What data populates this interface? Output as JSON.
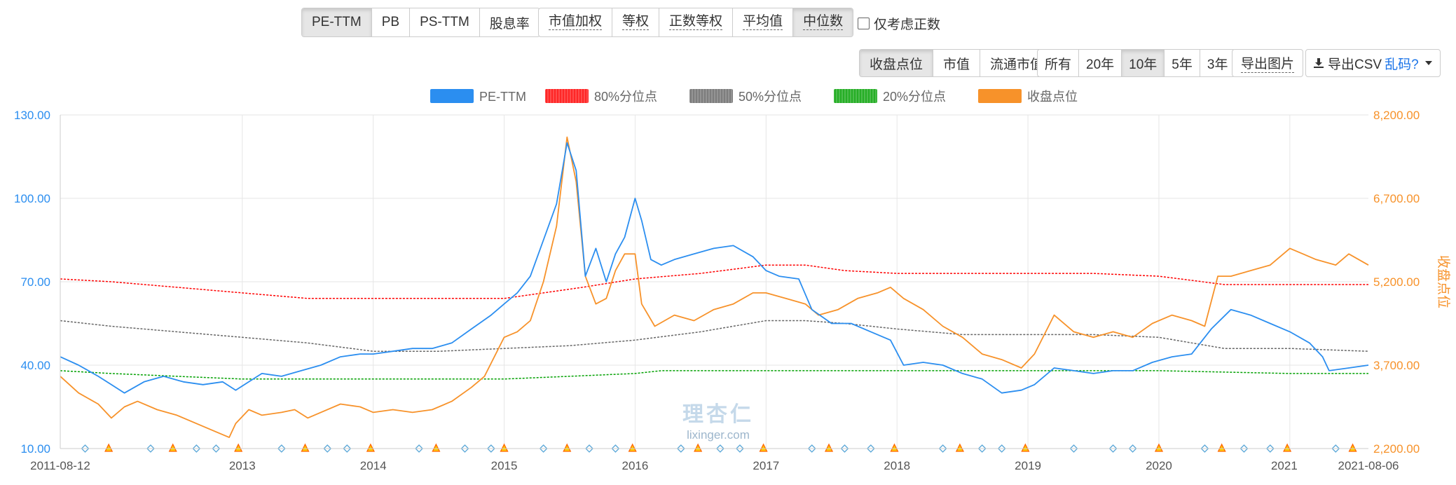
{
  "metric_tabs": [
    {
      "label": "PE-TTM",
      "active": true
    },
    {
      "label": "PB",
      "active": false
    },
    {
      "label": "PS-TTM",
      "active": false
    },
    {
      "label": "股息率",
      "active": false
    }
  ],
  "weight_tabs": [
    {
      "label": "市值加权",
      "active": false
    },
    {
      "label": "等权",
      "active": false
    },
    {
      "label": "正数等权",
      "active": false
    },
    {
      "label": "平均值",
      "active": false
    },
    {
      "label": "中位数",
      "active": true
    }
  ],
  "positive_only_label": "仅考虑正数",
  "value_tabs": [
    {
      "label": "收盘点位",
      "active": true
    },
    {
      "label": "市值",
      "active": false
    },
    {
      "label": "流通市值",
      "active": false
    }
  ],
  "range_tabs": [
    {
      "label": "所有",
      "active": false
    },
    {
      "label": "20年",
      "active": false
    },
    {
      "label": "10年",
      "active": true
    },
    {
      "label": "5年",
      "active": false
    },
    {
      "label": "3年",
      "active": false
    }
  ],
  "export_image_label": "导出图片",
  "export_csv_label": "导出CSV",
  "garbled_link": "乱码?",
  "watermark": {
    "cn": "理杏仁",
    "en": "lixinger.com"
  },
  "colors": {
    "pe": "#2b8ef0",
    "p80": "#ff0000",
    "p50": "#666666",
    "p20": "#00a000",
    "close": "#f7922a",
    "marker": "#5aa7d8",
    "marker2": "#ff6600"
  },
  "chart_data": {
    "type": "line",
    "legend": [
      "PE-TTM",
      "80%分位点",
      "50%分位点",
      "20%分位点",
      "收盘点位"
    ],
    "x_start": "2011-08-12",
    "x_end": "2021-08-06",
    "x_ticks": [
      "2011-08-12",
      "2013",
      "2014",
      "2015",
      "2016",
      "2017",
      "2018",
      "2019",
      "2020",
      "2021",
      "2021-08-06"
    ],
    "y_left": {
      "min": 10,
      "max": 130,
      "ticks": [
        "10.00",
        "40.00",
        "70.00",
        "100.00",
        "130.00"
      ]
    },
    "y_right": {
      "min": 2200,
      "max": 8200,
      "ticks": [
        "2,200.00",
        "3,700.00",
        "5,200.00",
        "6,700.00",
        "8,200.00"
      ],
      "label": "收盘点位"
    },
    "series": [
      {
        "name": "PE-TTM",
        "axis": "left",
        "points": [
          [
            2011.61,
            43
          ],
          [
            2011.75,
            40
          ],
          [
            2011.9,
            36
          ],
          [
            2012.0,
            33
          ],
          [
            2012.1,
            30
          ],
          [
            2012.25,
            34
          ],
          [
            2012.4,
            36
          ],
          [
            2012.55,
            34
          ],
          [
            2012.7,
            33
          ],
          [
            2012.85,
            34
          ],
          [
            2012.95,
            31
          ],
          [
            2013.05,
            34
          ],
          [
            2013.15,
            37
          ],
          [
            2013.3,
            36
          ],
          [
            2013.45,
            38
          ],
          [
            2013.6,
            40
          ],
          [
            2013.75,
            43
          ],
          [
            2013.9,
            44
          ],
          [
            2014.0,
            44
          ],
          [
            2014.15,
            45
          ],
          [
            2014.3,
            46
          ],
          [
            2014.45,
            46
          ],
          [
            2014.6,
            48
          ],
          [
            2014.75,
            53
          ],
          [
            2014.9,
            58
          ],
          [
            2015.0,
            62
          ],
          [
            2015.1,
            66
          ],
          [
            2015.2,
            72
          ],
          [
            2015.3,
            85
          ],
          [
            2015.4,
            98
          ],
          [
            2015.48,
            120
          ],
          [
            2015.55,
            110
          ],
          [
            2015.62,
            72
          ],
          [
            2015.7,
            82
          ],
          [
            2015.78,
            70
          ],
          [
            2015.85,
            80
          ],
          [
            2015.92,
            86
          ],
          [
            2016.0,
            100
          ],
          [
            2016.05,
            92
          ],
          [
            2016.12,
            78
          ],
          [
            2016.2,
            76
          ],
          [
            2016.3,
            78
          ],
          [
            2016.45,
            80
          ],
          [
            2016.6,
            82
          ],
          [
            2016.75,
            83
          ],
          [
            2016.9,
            79
          ],
          [
            2017.0,
            74
          ],
          [
            2017.1,
            72
          ],
          [
            2017.25,
            71
          ],
          [
            2017.35,
            60
          ],
          [
            2017.5,
            55
          ],
          [
            2017.65,
            55
          ],
          [
            2017.8,
            52
          ],
          [
            2017.95,
            49
          ],
          [
            2018.05,
            40
          ],
          [
            2018.2,
            41
          ],
          [
            2018.35,
            40
          ],
          [
            2018.5,
            37
          ],
          [
            2018.65,
            35
          ],
          [
            2018.8,
            30
          ],
          [
            2018.95,
            31
          ],
          [
            2019.05,
            33
          ],
          [
            2019.2,
            39
          ],
          [
            2019.35,
            38
          ],
          [
            2019.5,
            37
          ],
          [
            2019.65,
            38
          ],
          [
            2019.8,
            38
          ],
          [
            2019.95,
            41
          ],
          [
            2020.1,
            43
          ],
          [
            2020.25,
            44
          ],
          [
            2020.4,
            53
          ],
          [
            2020.55,
            60
          ],
          [
            2020.7,
            58
          ],
          [
            2020.85,
            55
          ],
          [
            2021.0,
            52
          ],
          [
            2021.15,
            48
          ],
          [
            2021.25,
            43
          ],
          [
            2021.3,
            38
          ],
          [
            2021.45,
            39
          ],
          [
            2021.6,
            40
          ]
        ]
      },
      {
        "name": "80%分位点",
        "axis": "left",
        "points": [
          [
            2011.61,
            71
          ],
          [
            2012.0,
            70
          ],
          [
            2012.5,
            68
          ],
          [
            2013.0,
            66
          ],
          [
            2013.5,
            64
          ],
          [
            2014.0,
            64
          ],
          [
            2014.5,
            64
          ],
          [
            2015.0,
            64
          ],
          [
            2015.3,
            66
          ],
          [
            2015.6,
            68
          ],
          [
            2016.0,
            71
          ],
          [
            2016.5,
            73
          ],
          [
            2017.0,
            76
          ],
          [
            2017.3,
            76
          ],
          [
            2017.6,
            74
          ],
          [
            2018.0,
            73
          ],
          [
            2018.5,
            73
          ],
          [
            2019.0,
            73
          ],
          [
            2019.5,
            73
          ],
          [
            2020.0,
            72
          ],
          [
            2020.5,
            69
          ],
          [
            2021.0,
            69
          ],
          [
            2021.6,
            69
          ]
        ]
      },
      {
        "name": "50%分位点",
        "axis": "left",
        "points": [
          [
            2011.61,
            56
          ],
          [
            2012.0,
            54
          ],
          [
            2012.5,
            52
          ],
          [
            2013.0,
            50
          ],
          [
            2013.5,
            48
          ],
          [
            2014.0,
            45
          ],
          [
            2014.5,
            45
          ],
          [
            2015.0,
            46
          ],
          [
            2015.5,
            47
          ],
          [
            2016.0,
            49
          ],
          [
            2016.5,
            52
          ],
          [
            2017.0,
            56
          ],
          [
            2017.3,
            56
          ],
          [
            2017.6,
            55
          ],
          [
            2018.0,
            53
          ],
          [
            2018.5,
            51
          ],
          [
            2019.0,
            51
          ],
          [
            2019.5,
            51
          ],
          [
            2020.0,
            50
          ],
          [
            2020.5,
            46
          ],
          [
            2021.0,
            46
          ],
          [
            2021.6,
            45
          ]
        ]
      },
      {
        "name": "20%分位点",
        "axis": "left",
        "points": [
          [
            2011.61,
            38
          ],
          [
            2012.0,
            37
          ],
          [
            2012.5,
            36
          ],
          [
            2013.0,
            35
          ],
          [
            2013.5,
            35
          ],
          [
            2014.0,
            35
          ],
          [
            2014.5,
            35
          ],
          [
            2015.0,
            35
          ],
          [
            2015.5,
            36
          ],
          [
            2016.0,
            37
          ],
          [
            2016.2,
            38
          ],
          [
            2017.0,
            38
          ],
          [
            2018.0,
            38
          ],
          [
            2019.0,
            38
          ],
          [
            2020.0,
            38
          ],
          [
            2021.0,
            37
          ],
          [
            2021.6,
            37
          ]
        ]
      },
      {
        "name": "收盘点位",
        "axis": "right",
        "points": [
          [
            2011.61,
            3500
          ],
          [
            2011.75,
            3200
          ],
          [
            2011.9,
            3000
          ],
          [
            2012.0,
            2750
          ],
          [
            2012.1,
            2950
          ],
          [
            2012.2,
            3050
          ],
          [
            2012.35,
            2900
          ],
          [
            2012.5,
            2800
          ],
          [
            2012.65,
            2650
          ],
          [
            2012.8,
            2500
          ],
          [
            2012.9,
            2400
          ],
          [
            2012.95,
            2650
          ],
          [
            2013.05,
            2900
          ],
          [
            2013.15,
            2800
          ],
          [
            2013.3,
            2850
          ],
          [
            2013.4,
            2900
          ],
          [
            2013.5,
            2750
          ],
          [
            2013.6,
            2850
          ],
          [
            2013.75,
            3000
          ],
          [
            2013.9,
            2950
          ],
          [
            2014.0,
            2850
          ],
          [
            2014.15,
            2900
          ],
          [
            2014.3,
            2850
          ],
          [
            2014.45,
            2900
          ],
          [
            2014.6,
            3050
          ],
          [
            2014.75,
            3300
          ],
          [
            2014.85,
            3500
          ],
          [
            2015.0,
            4200
          ],
          [
            2015.1,
            4300
          ],
          [
            2015.2,
            4500
          ],
          [
            2015.3,
            5200
          ],
          [
            2015.4,
            6200
          ],
          [
            2015.48,
            7800
          ],
          [
            2015.55,
            7000
          ],
          [
            2015.62,
            5300
          ],
          [
            2015.7,
            4800
          ],
          [
            2015.78,
            4900
          ],
          [
            2015.85,
            5400
          ],
          [
            2015.92,
            5700
          ],
          [
            2016.0,
            5700
          ],
          [
            2016.05,
            4800
          ],
          [
            2016.15,
            4400
          ],
          [
            2016.3,
            4600
          ],
          [
            2016.45,
            4500
          ],
          [
            2016.6,
            4700
          ],
          [
            2016.75,
            4800
          ],
          [
            2016.9,
            5000
          ],
          [
            2017.0,
            5000
          ],
          [
            2017.15,
            4900
          ],
          [
            2017.3,
            4800
          ],
          [
            2017.4,
            4600
          ],
          [
            2017.55,
            4700
          ],
          [
            2017.7,
            4900
          ],
          [
            2017.85,
            5000
          ],
          [
            2017.95,
            5100
          ],
          [
            2018.05,
            4900
          ],
          [
            2018.2,
            4700
          ],
          [
            2018.35,
            4400
          ],
          [
            2018.5,
            4200
          ],
          [
            2018.65,
            3900
          ],
          [
            2018.8,
            3800
          ],
          [
            2018.95,
            3650
          ],
          [
            2019.05,
            3900
          ],
          [
            2019.2,
            4600
          ],
          [
            2019.35,
            4300
          ],
          [
            2019.5,
            4200
          ],
          [
            2019.65,
            4300
          ],
          [
            2019.8,
            4200
          ],
          [
            2019.95,
            4450
          ],
          [
            2020.1,
            4600
          ],
          [
            2020.25,
            4500
          ],
          [
            2020.35,
            4400
          ],
          [
            2020.45,
            5300
          ],
          [
            2020.55,
            5300
          ],
          [
            2020.7,
            5400
          ],
          [
            2020.85,
            5500
          ],
          [
            2021.0,
            5800
          ],
          [
            2021.1,
            5700
          ],
          [
            2021.2,
            5600
          ],
          [
            2021.35,
            5500
          ],
          [
            2021.45,
            5700
          ],
          [
            2021.6,
            5500
          ]
        ]
      }
    ]
  }
}
